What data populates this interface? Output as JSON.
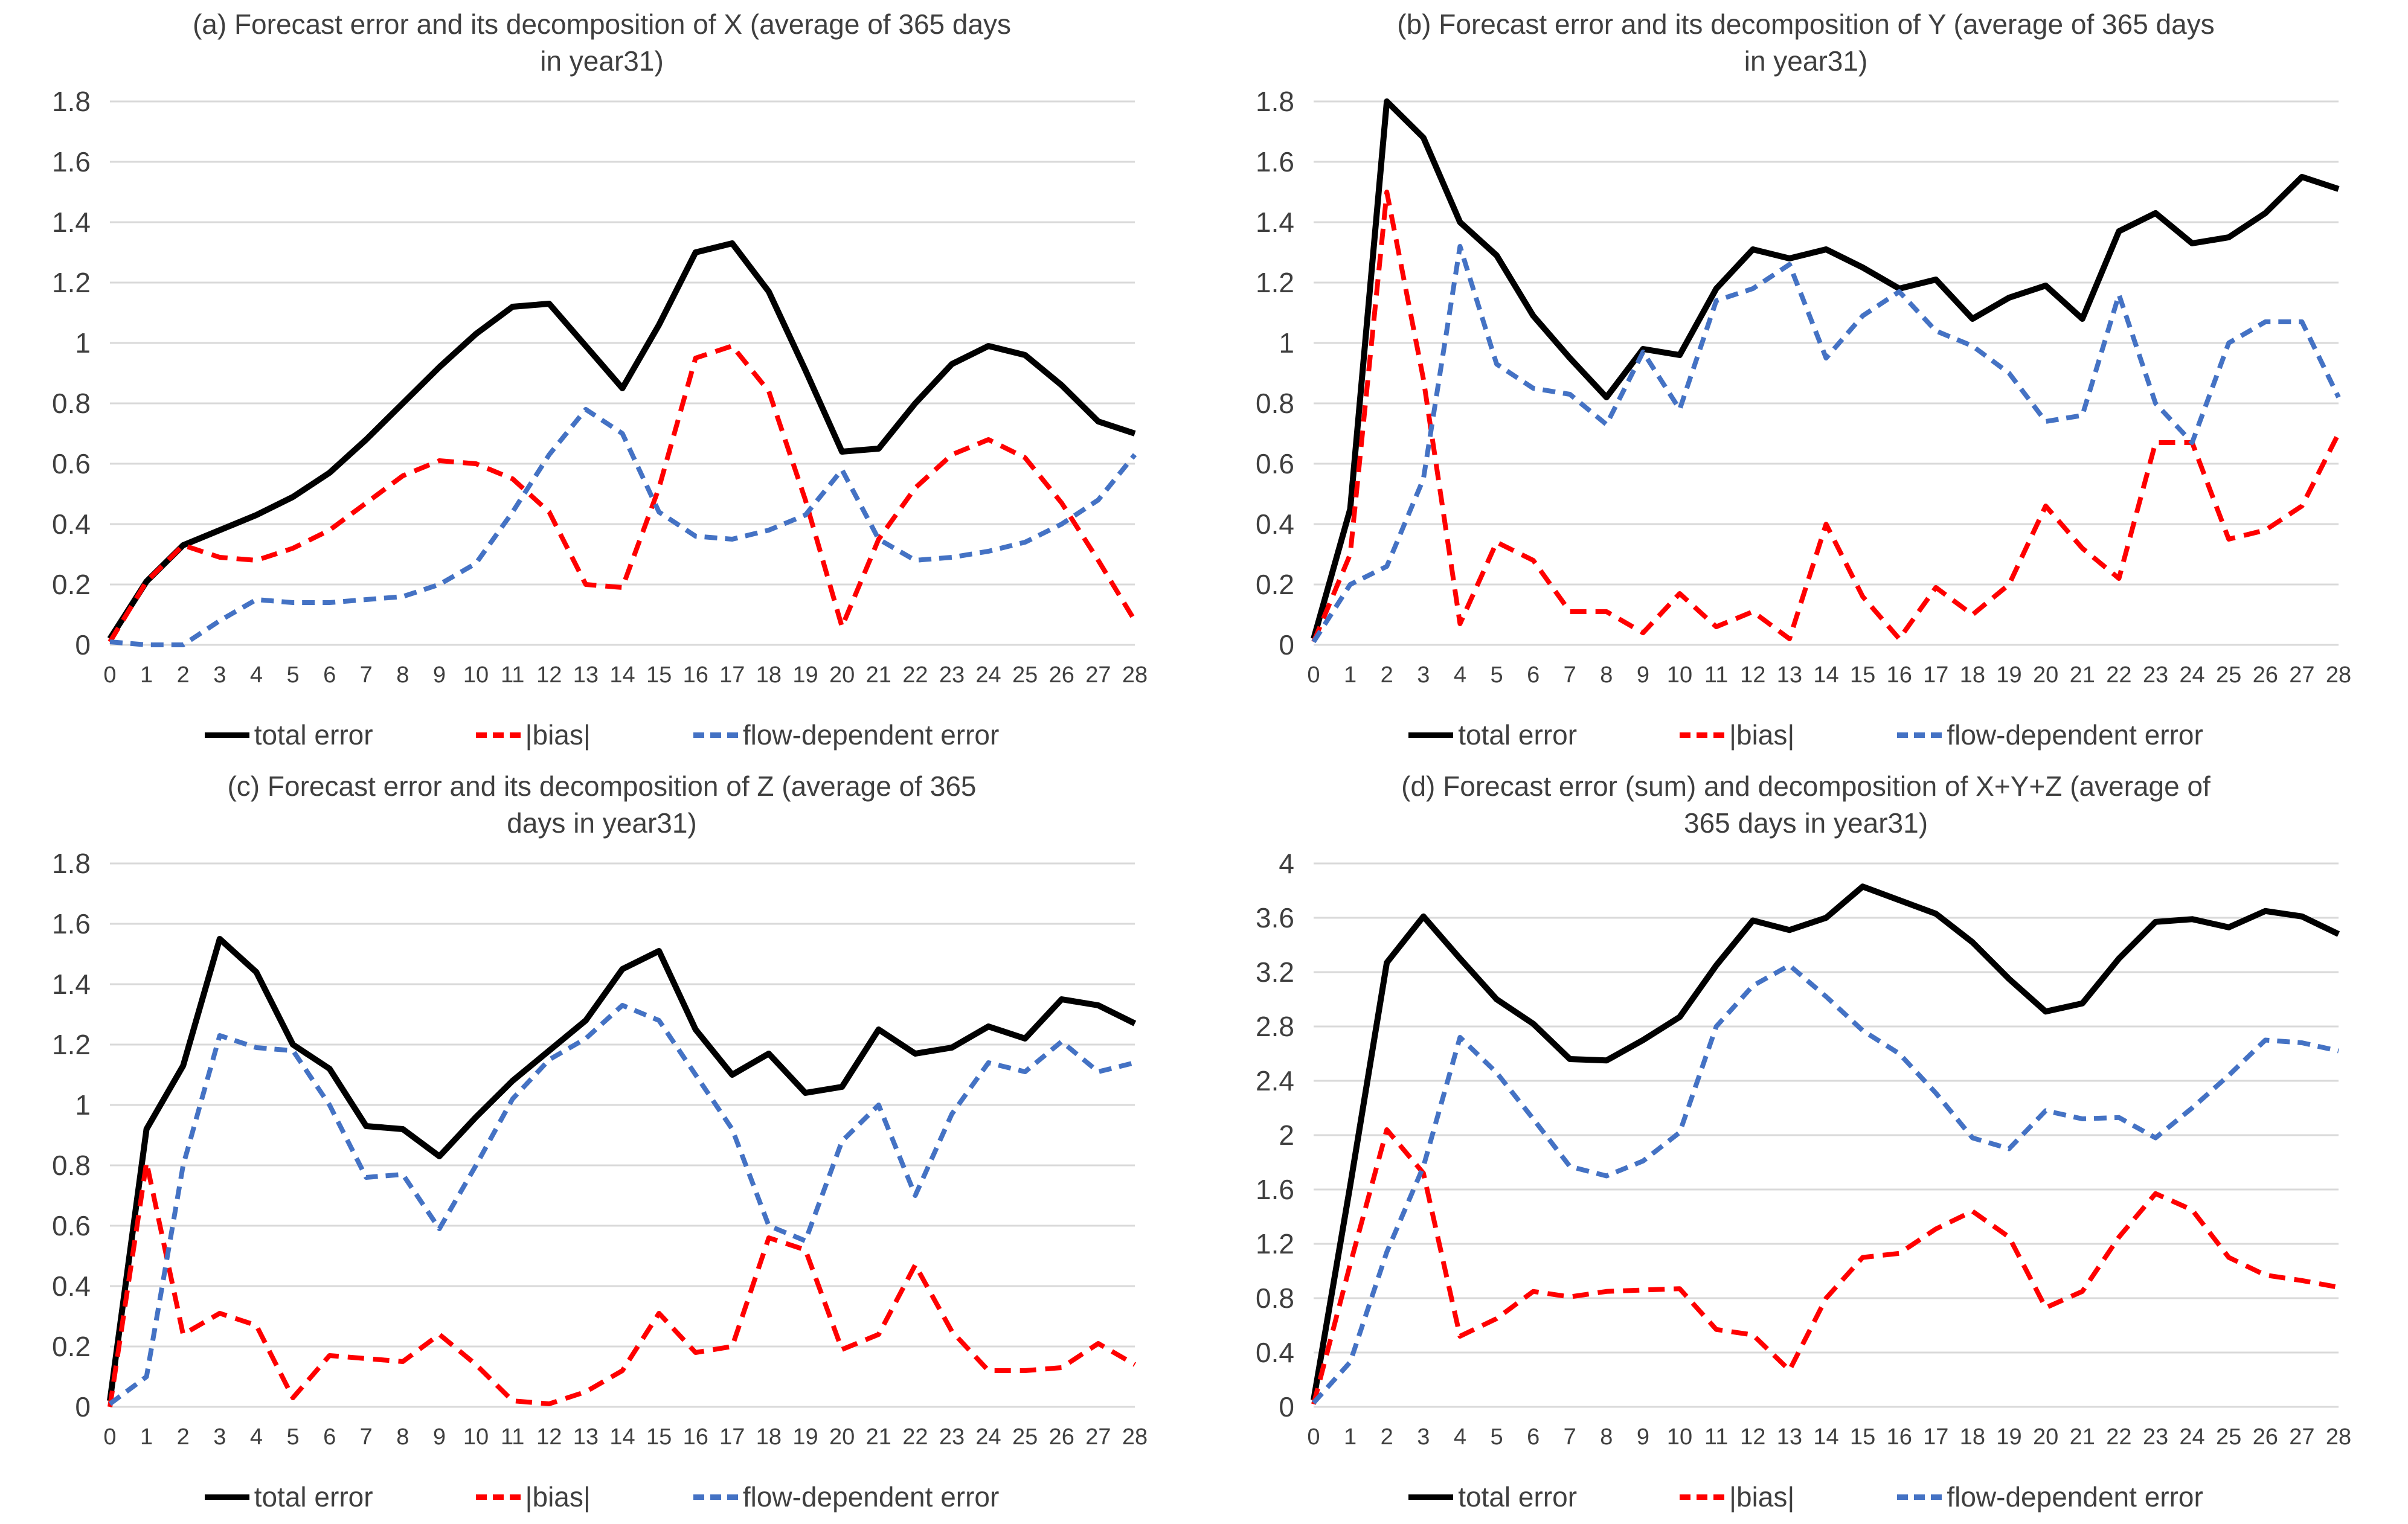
{
  "colors": {
    "total_error": "#000000",
    "bias": "#ff0000",
    "flow_dependent": "#4472c4",
    "gridline": "#d9d9d9",
    "text": "#3f3f3f",
    "background": "#ffffff"
  },
  "legend": {
    "items": [
      {
        "id": "total-error",
        "label": "total error",
        "style": "solid",
        "color_key": "total_error"
      },
      {
        "id": "bias",
        "label": "|bias|",
        "style": "dashed",
        "color_key": "bias"
      },
      {
        "id": "flow-dependent-error",
        "label": "flow-dependent error",
        "style": "dashed",
        "color_key": "flow_dependent"
      }
    ]
  },
  "chart_data": [
    {
      "id": "a",
      "type": "line",
      "title_lines": [
        "(a) Forecast error and its decomposition of X (average of 365 days",
        "in year31)"
      ],
      "ylim": [
        0,
        1.8
      ],
      "yticks": [
        "0",
        "0.2",
        "0.4",
        "0.6",
        "0.8",
        "1",
        "1.2",
        "1.4",
        "1.6",
        "1.8"
      ],
      "grid": true,
      "legend_position": "bottom",
      "x": [
        "0",
        "1",
        "2",
        "3",
        "4",
        "5",
        "6",
        "7",
        "8",
        "9",
        "10",
        "11",
        "12",
        "13",
        "14",
        "15",
        "16",
        "17",
        "18",
        "19",
        "20",
        "21",
        "22",
        "23",
        "24",
        "25",
        "26",
        "27",
        "28"
      ],
      "series": [
        {
          "id": "total-error",
          "name": "total error",
          "style": "solid",
          "color_key": "total_error",
          "values": [
            0.02,
            0.21,
            0.33,
            0.38,
            0.43,
            0.49,
            0.57,
            0.68,
            0.8,
            0.92,
            1.03,
            1.12,
            1.13,
            0.99,
            0.85,
            1.06,
            1.3,
            1.33,
            1.17,
            0.91,
            0.64,
            0.65,
            0.8,
            0.93,
            0.99,
            0.96,
            0.86,
            0.74,
            0.7
          ]
        },
        {
          "id": "bias",
          "name": "|bias|",
          "style": "dashed",
          "color_key": "bias",
          "values": [
            0.01,
            0.21,
            0.33,
            0.29,
            0.28,
            0.32,
            0.38,
            0.47,
            0.56,
            0.61,
            0.6,
            0.55,
            0.44,
            0.2,
            0.19,
            0.52,
            0.95,
            0.99,
            0.84,
            0.48,
            0.06,
            0.35,
            0.52,
            0.63,
            0.68,
            0.62,
            0.47,
            0.28,
            0.08
          ]
        },
        {
          "id": "flow-dependent-error",
          "name": "flow-dependent error",
          "style": "dashed",
          "color_key": "flow_dependent",
          "values": [
            0.01,
            0.0,
            0.0,
            0.08,
            0.15,
            0.14,
            0.14,
            0.15,
            0.16,
            0.2,
            0.27,
            0.44,
            0.63,
            0.78,
            0.7,
            0.44,
            0.36,
            0.35,
            0.38,
            0.43,
            0.58,
            0.35,
            0.28,
            0.29,
            0.31,
            0.34,
            0.4,
            0.48,
            0.63
          ]
        }
      ]
    },
    {
      "id": "b",
      "type": "line",
      "title_lines": [
        "(b) Forecast error and its decomposition of Y (average of 365 days",
        "in year31)"
      ],
      "ylim": [
        0,
        1.8
      ],
      "yticks": [
        "0",
        "0.2",
        "0.4",
        "0.6",
        "0.8",
        "1",
        "1.2",
        "1.4",
        "1.6",
        "1.8"
      ],
      "grid": true,
      "legend_position": "bottom",
      "x": [
        "0",
        "1",
        "2",
        "3",
        "4",
        "5",
        "6",
        "7",
        "8",
        "9",
        "10",
        "11",
        "12",
        "13",
        "14",
        "15",
        "16",
        "17",
        "18",
        "19",
        "20",
        "21",
        "22",
        "23",
        "24",
        "25",
        "26",
        "27",
        "28"
      ],
      "series": [
        {
          "id": "total-error",
          "name": "total error",
          "style": "solid",
          "color_key": "total_error",
          "values": [
            0.02,
            0.45,
            1.8,
            1.68,
            1.4,
            1.29,
            1.09,
            0.95,
            0.82,
            0.98,
            0.96,
            1.18,
            1.31,
            1.28,
            1.31,
            1.25,
            1.18,
            1.21,
            1.08,
            1.15,
            1.19,
            1.08,
            1.37,
            1.43,
            1.33,
            1.35,
            1.43,
            1.55,
            1.51
          ]
        },
        {
          "id": "bias",
          "name": "|bias|",
          "style": "dashed",
          "color_key": "bias",
          "values": [
            0.01,
            0.3,
            1.5,
            0.88,
            0.07,
            0.34,
            0.28,
            0.11,
            0.11,
            0.04,
            0.17,
            0.06,
            0.11,
            0.02,
            0.4,
            0.16,
            0.02,
            0.19,
            0.1,
            0.2,
            0.46,
            0.32,
            0.22,
            0.67,
            0.67,
            0.35,
            0.38,
            0.46,
            0.7
          ]
        },
        {
          "id": "flow-dependent-error",
          "name": "flow-dependent error",
          "style": "dashed",
          "color_key": "flow_dependent",
          "values": [
            0.01,
            0.2,
            0.26,
            0.55,
            1.32,
            0.93,
            0.85,
            0.83,
            0.73,
            0.97,
            0.78,
            1.14,
            1.18,
            1.26,
            0.95,
            1.09,
            1.17,
            1.04,
            0.99,
            0.9,
            0.74,
            0.76,
            1.16,
            0.8,
            0.67,
            1.0,
            1.07,
            1.07,
            0.82
          ]
        }
      ]
    },
    {
      "id": "c",
      "type": "line",
      "title_lines": [
        "(c) Forecast error and its decomposition of Z (average of 365",
        "days in year31)"
      ],
      "ylim": [
        0,
        1.8
      ],
      "yticks": [
        "0",
        "0.2",
        "0.4",
        "0.6",
        "0.8",
        "1",
        "1.2",
        "1.4",
        "1.6",
        "1.8"
      ],
      "grid": true,
      "legend_position": "bottom",
      "x": [
        "0",
        "1",
        "2",
        "3",
        "4",
        "5",
        "6",
        "7",
        "8",
        "9",
        "10",
        "11",
        "12",
        "13",
        "14",
        "15",
        "16",
        "17",
        "18",
        "19",
        "20",
        "21",
        "22",
        "23",
        "24",
        "25",
        "26",
        "27",
        "28"
      ],
      "series": [
        {
          "id": "total-error",
          "name": "total error",
          "style": "solid",
          "color_key": "total_error",
          "values": [
            0.02,
            0.92,
            1.13,
            1.55,
            1.44,
            1.2,
            1.12,
            0.93,
            0.92,
            0.83,
            0.96,
            1.08,
            1.18,
            1.28,
            1.45,
            1.51,
            1.25,
            1.1,
            1.17,
            1.04,
            1.06,
            1.25,
            1.17,
            1.19,
            1.26,
            1.22,
            1.35,
            1.33,
            1.27
          ]
        },
        {
          "id": "bias",
          "name": "|bias|",
          "style": "dashed",
          "color_key": "bias",
          "values": [
            0.0,
            0.81,
            0.24,
            0.31,
            0.27,
            0.03,
            0.17,
            0.16,
            0.15,
            0.24,
            0.14,
            0.02,
            0.01,
            0.05,
            0.12,
            0.31,
            0.18,
            0.2,
            0.56,
            0.52,
            0.19,
            0.24,
            0.47,
            0.25,
            0.12,
            0.12,
            0.13,
            0.21,
            0.14
          ]
        },
        {
          "id": "flow-dependent-error",
          "name": "flow-dependent error",
          "style": "dashed",
          "color_key": "flow_dependent",
          "values": [
            0.01,
            0.1,
            0.8,
            1.23,
            1.19,
            1.18,
            1.0,
            0.76,
            0.77,
            0.59,
            0.8,
            1.02,
            1.15,
            1.22,
            1.33,
            1.28,
            1.1,
            0.92,
            0.6,
            0.55,
            0.88,
            1.0,
            0.7,
            0.97,
            1.14,
            1.11,
            1.21,
            1.11,
            1.14
          ]
        }
      ]
    },
    {
      "id": "d",
      "type": "line",
      "title_lines": [
        "(d) Forecast error (sum) and decomposition of X+Y+Z (average of",
        "365 days in year31)"
      ],
      "ylim": [
        0,
        4
      ],
      "yticks": [
        "0",
        "0.4",
        "0.8",
        "1.2",
        "1.6",
        "2",
        "2.4",
        "2.8",
        "3.2",
        "3.6",
        "4"
      ],
      "grid": true,
      "legend_position": "bottom",
      "x": [
        "0",
        "1",
        "2",
        "3",
        "4",
        "5",
        "6",
        "7",
        "8",
        "9",
        "10",
        "11",
        "12",
        "13",
        "14",
        "15",
        "16",
        "17",
        "18",
        "19",
        "20",
        "21",
        "22",
        "23",
        "24",
        "25",
        "26",
        "27",
        "28"
      ],
      "series": [
        {
          "id": "total-error",
          "name": "total error",
          "style": "solid",
          "color_key": "total_error",
          "values": [
            0.05,
            1.63,
            3.27,
            3.61,
            3.3,
            3.0,
            2.82,
            2.56,
            2.55,
            2.7,
            2.87,
            3.25,
            3.58,
            3.51,
            3.6,
            3.83,
            3.73,
            3.63,
            3.42,
            3.15,
            2.91,
            2.97,
            3.3,
            3.57,
            3.59,
            3.53,
            3.65,
            3.61,
            3.48
          ]
        },
        {
          "id": "bias",
          "name": "|bias|",
          "style": "dashed",
          "color_key": "bias",
          "values": [
            0.02,
            1.05,
            2.04,
            1.72,
            0.52,
            0.65,
            0.85,
            0.81,
            0.85,
            0.86,
            0.87,
            0.57,
            0.53,
            0.27,
            0.8,
            1.1,
            1.13,
            1.31,
            1.44,
            1.25,
            0.73,
            0.85,
            1.25,
            1.57,
            1.45,
            1.1,
            0.97,
            0.93,
            0.88
          ]
        },
        {
          "id": "flow-dependent-error",
          "name": "flow-dependent error",
          "style": "dashed",
          "color_key": "flow_dependent",
          "values": [
            0.03,
            0.33,
            1.14,
            1.77,
            2.72,
            2.46,
            2.12,
            1.77,
            1.7,
            1.81,
            2.02,
            2.8,
            3.1,
            3.25,
            3.02,
            2.77,
            2.6,
            2.31,
            1.98,
            1.9,
            2.18,
            2.12,
            2.13,
            1.98,
            2.2,
            2.44,
            2.7,
            2.68,
            2.62
          ]
        }
      ]
    }
  ]
}
